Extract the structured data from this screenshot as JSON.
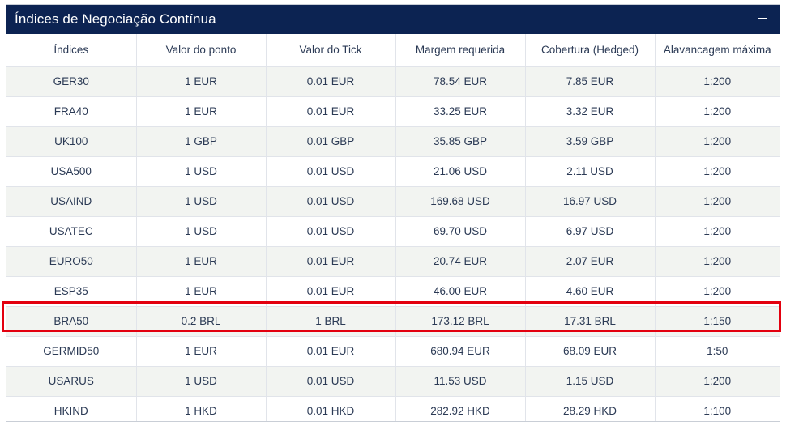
{
  "panel": {
    "title": "Índices de Negociação Contínua",
    "collapse_symbol": "minus-icon"
  },
  "table": {
    "columns": [
      "Índices",
      "Valor do ponto",
      "Valor do Tick",
      "Margem requerida",
      "Cobertura (Hedged)",
      "Alavancagem máxima"
    ],
    "rows": [
      [
        "GER30",
        "1 EUR",
        "0.01 EUR",
        "78.54 EUR",
        "7.85 EUR",
        "1:200"
      ],
      [
        "FRA40",
        "1 EUR",
        "0.01 EUR",
        "33.25 EUR",
        "3.32 EUR",
        "1:200"
      ],
      [
        "UK100",
        "1 GBP",
        "0.01 GBP",
        "35.85 GBP",
        "3.59 GBP",
        "1:200"
      ],
      [
        "USA500",
        "1 USD",
        "0.01 USD",
        "21.06 USD",
        "2.11 USD",
        "1:200"
      ],
      [
        "USAIND",
        "1 USD",
        "0.01 USD",
        "169.68 USD",
        "16.97 USD",
        "1:200"
      ],
      [
        "USATEC",
        "1 USD",
        "0.01 USD",
        "69.70 USD",
        "6.97 USD",
        "1:200"
      ],
      [
        "EURO50",
        "1 EUR",
        "0.01 EUR",
        "20.74 EUR",
        "2.07 EUR",
        "1:200"
      ],
      [
        "ESP35",
        "1 EUR",
        "0.01 EUR",
        "46.00 EUR",
        "4.60 EUR",
        "1:200"
      ],
      [
        "BRA50",
        "0.2 BRL",
        "1 BRL",
        "173.12 BRL",
        "17.31 BRL",
        "1:150"
      ],
      [
        "GERMID50",
        "1 EUR",
        "0.01 EUR",
        "680.94 EUR",
        "68.09 EUR",
        "1:50"
      ],
      [
        "USARUS",
        "1 USD",
        "0.01 USD",
        "11.53 USD",
        "1.15 USD",
        "1:200"
      ],
      [
        "HKIND",
        "1 HKD",
        "0.01 HKD",
        "282.92 HKD",
        "28.29 HKD",
        "1:100"
      ]
    ]
  },
  "colors": {
    "header_bg": "#0c2352",
    "highlight": "#e3000f",
    "stripe": "#f2f4f1"
  }
}
